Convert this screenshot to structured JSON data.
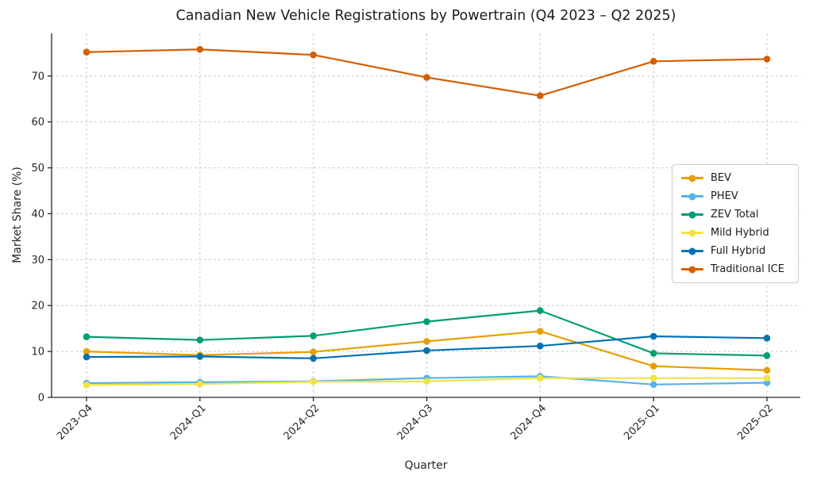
{
  "chart_data": {
    "type": "line",
    "title": "Canadian New Vehicle Registrations by Powertrain (Q4 2023 – Q2 2025)",
    "xlabel": "Quarter",
    "ylabel": "Market Share (%)",
    "categories": [
      "2023-Q4",
      "2024-Q1",
      "2024-Q2",
      "2024-Q3",
      "2024-Q4",
      "2025-Q1",
      "2025-Q2"
    ],
    "ylim": [
      0,
      79.3
    ],
    "yticks": [
      0,
      10,
      20,
      30,
      40,
      50,
      60,
      70
    ],
    "grid": "dashed-both-axes",
    "grid_color": "#cbcbcb",
    "axis_color": "#262626",
    "legend_position": "center-right",
    "series": [
      {
        "name": "BEV",
        "color": "#E69F00",
        "values": [
          10.0,
          9.2,
          9.9,
          12.2,
          14.4,
          6.8,
          5.9
        ]
      },
      {
        "name": "PHEV",
        "color": "#56B4E9",
        "values": [
          3.1,
          3.3,
          3.5,
          4.2,
          4.6,
          2.8,
          3.2
        ]
      },
      {
        "name": "ZEV Total",
        "color": "#009E73",
        "values": [
          13.2,
          12.5,
          13.4,
          16.5,
          18.9,
          9.6,
          9.1
        ]
      },
      {
        "name": "Mild Hybrid",
        "color": "#F0E442",
        "values": [
          2.7,
          2.9,
          3.4,
          3.5,
          4.2,
          4.2,
          4.2
        ]
      },
      {
        "name": "Full Hybrid",
        "color": "#0072B2",
        "values": [
          8.8,
          8.9,
          8.5,
          10.2,
          11.2,
          13.3,
          12.9
        ]
      },
      {
        "name": "Traditional ICE",
        "color": "#D55E00",
        "values": [
          75.2,
          75.8,
          74.6,
          69.7,
          65.7,
          73.2,
          73.7
        ]
      }
    ]
  }
}
